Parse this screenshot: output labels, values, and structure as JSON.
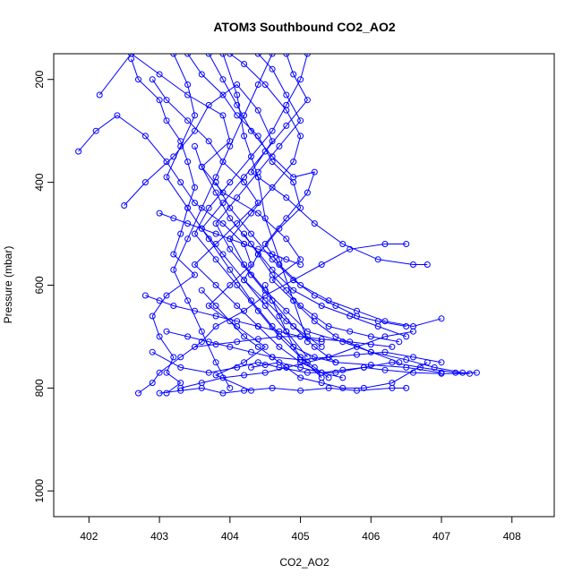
{
  "chart_data": {
    "type": "line",
    "title": "ATOM3 Southbound CO2_AO2",
    "xlabel": "CO2_AO2",
    "ylabel": "Pressure (mbar)",
    "xlim": [
      401.5,
      408.6
    ],
    "ylim": [
      1050,
      150
    ],
    "y_inverted": true,
    "x_ticks": [
      402,
      403,
      404,
      405,
      406,
      407,
      408
    ],
    "y_ticks": [
      200,
      400,
      600,
      800,
      1000
    ],
    "grid": false,
    "legend": "none",
    "line_color": "#0000ff",
    "marker": "open-circle",
    "series": [
      {
        "x": [
          402.6,
          402.7,
          403.0,
          403.1,
          403.3,
          403.4,
          403.5,
          403.4,
          403.3,
          403.2,
          403.5,
          403.1,
          402.9,
          403.0,
          403.2,
          403.1,
          403.3,
          403.1
        ],
        "y": [
          160,
          200,
          240,
          280,
          320,
          360,
          410,
          450,
          500,
          540,
          580,
          620,
          660,
          700,
          740,
          770,
          790,
          810
        ]
      },
      {
        "x": [
          401.85,
          402.1,
          402.4,
          402.8,
          403.1,
          403.3,
          403.5,
          403.9,
          404.2,
          404.3,
          404.0,
          403.7,
          404.1,
          404.5,
          404.2,
          403.8,
          404.3
        ],
        "y": [
          340,
          300,
          270,
          310,
          360,
          400,
          440,
          480,
          520,
          560,
          600,
          640,
          680,
          720,
          750,
          775,
          805
        ]
      },
      {
        "x": [
          402.15,
          402.6,
          403.0,
          403.4,
          403.9,
          404.0,
          403.6,
          403.9,
          404.4,
          404.8,
          405.0,
          404.6,
          404.9,
          405.2,
          405.5,
          406.0,
          406.5,
          406.9,
          407.3
        ],
        "y": [
          230,
          150,
          190,
          230,
          270,
          320,
          370,
          420,
          460,
          510,
          550,
          590,
          630,
          670,
          700,
          730,
          745,
          760,
          770
        ]
      },
      {
        "x": [
          402.5,
          402.8,
          403.2,
          403.5,
          403.7,
          404.1,
          404.4,
          404.6,
          404.3,
          404.8,
          405.2,
          405.6,
          406.1,
          406.6,
          406.8
        ],
        "y": [
          445,
          400,
          350,
          300,
          250,
          210,
          260,
          320,
          380,
          430,
          480,
          520,
          550,
          560,
          560
        ]
      },
      {
        "x": [
          402.7,
          402.9,
          403.0,
          403.3,
          403.6,
          403.8,
          404.2,
          404.5,
          404.9,
          405.3,
          405.7,
          406.2,
          406.5
        ],
        "y": [
          810,
          790,
          770,
          740,
          710,
          680,
          650,
          620,
          590,
          560,
          530,
          520,
          520
        ]
      },
      {
        "x": [
          402.9,
          403.3,
          403.7,
          404.1,
          404.4,
          404.7,
          405.1,
          405.5,
          405.9,
          406.3,
          406.7,
          407.2,
          407.5
        ],
        "y": [
          730,
          760,
          770,
          760,
          750,
          760,
          770,
          770,
          760,
          750,
          760,
          770,
          770
        ]
      },
      {
        "x": [
          403.0,
          403.3,
          403.6,
          403.9,
          404.2,
          404.6,
          405.0,
          405.4,
          405.8,
          406.3,
          406.5
        ],
        "y": [
          810,
          805,
          800,
          810,
          805,
          800,
          805,
          800,
          805,
          800,
          800
        ]
      },
      {
        "x": [
          403.4,
          403.6,
          403.9,
          404.1,
          404.4,
          404.6,
          404.9,
          405.0,
          404.7,
          404.4,
          404.2,
          404.5,
          404.8,
          405.1,
          405.3
        ],
        "y": [
          150,
          190,
          230,
          270,
          310,
          360,
          400,
          450,
          490,
          540,
          590,
          630,
          670,
          700,
          720
        ]
      },
      {
        "x": [
          403.7,
          403.9,
          404.1,
          404.3,
          404.6,
          404.9,
          405.2,
          405.1,
          404.8,
          404.5,
          404.7,
          405.0,
          405.4,
          405.8,
          406.2,
          406.6,
          407.0
        ],
        "y": [
          150,
          200,
          250,
          300,
          350,
          390,
          380,
          420,
          470,
          520,
          560,
          600,
          630,
          650,
          670,
          680,
          665
        ]
      },
      {
        "x": [
          404.0,
          404.2,
          404.5,
          404.8,
          405.0,
          404.9,
          404.6,
          404.3,
          404.0,
          404.2,
          404.5,
          404.8,
          405.1,
          405.6,
          406.0,
          406.4
        ],
        "y": [
          150,
          170,
          210,
          260,
          310,
          360,
          410,
          460,
          510,
          560,
          610,
          650,
          690,
          710,
          730,
          750
        ]
      },
      {
        "x": [
          404.4,
          404.6,
          404.8,
          405.0,
          404.7,
          404.4,
          404.1,
          403.8,
          404.0,
          404.3,
          404.6,
          404.9,
          405.2,
          405.5
        ],
        "y": [
          150,
          180,
          230,
          280,
          330,
          380,
          430,
          480,
          530,
          580,
          630,
          680,
          720,
          750
        ]
      },
      {
        "x": [
          404.8,
          404.9,
          405.1,
          404.8,
          404.5,
          404.2,
          403.9,
          403.6,
          403.9,
          404.2,
          404.5,
          404.8,
          405.1
        ],
        "y": [
          150,
          190,
          240,
          290,
          340,
          390,
          440,
          490,
          540,
          590,
          640,
          690,
          740
        ]
      },
      {
        "x": [
          405.1,
          405.0,
          404.8,
          404.6,
          404.3,
          404.0,
          403.7,
          403.5,
          403.8,
          404.1,
          404.4,
          404.7,
          405.0,
          405.3
        ],
        "y": [
          150,
          200,
          250,
          300,
          350,
          400,
          450,
          500,
          550,
          600,
          650,
          700,
          740,
          780
        ]
      },
      {
        "x": [
          403.2,
          403.4,
          403.5,
          403.3,
          403.1,
          403.4,
          403.7,
          404.0,
          404.3,
          404.6,
          404.9,
          405.2,
          405.5,
          406.0,
          406.5,
          407.0
        ],
        "y": [
          150,
          210,
          270,
          330,
          390,
          450,
          510,
          570,
          630,
          680,
          720,
          740,
          750,
          755,
          760,
          770
        ]
      },
      {
        "x": [
          402.9,
          403.1,
          403.4,
          403.7,
          403.9,
          404.2,
          404.4,
          404.1,
          403.8,
          403.5,
          403.8,
          404.1,
          404.4,
          404.7,
          405.0,
          405.3,
          405.6
        ],
        "y": [
          200,
          240,
          280,
          320,
          360,
          400,
          440,
          480,
          520,
          560,
          600,
          640,
          680,
          720,
          750,
          770,
          780
        ]
      },
      {
        "x": [
          403.5,
          403.6,
          403.8,
          404.0,
          404.3,
          404.6,
          404.9,
          405.3,
          405.7,
          406.1,
          406.5
        ],
        "y": [
          330,
          370,
          420,
          470,
          520,
          570,
          610,
          640,
          660,
          680,
          700
        ]
      },
      {
        "x": [
          403.6,
          403.8,
          404.0,
          404.2,
          404.4,
          404.6,
          404.8,
          405.0,
          405.3,
          405.6,
          405.9,
          406.3,
          406.8
        ],
        "y": [
          610,
          640,
          670,
          700,
          720,
          740,
          760,
          780,
          790,
          800,
          800,
          790,
          750
        ]
      },
      {
        "x": [
          403.3,
          403.6,
          403.9,
          404.2,
          404.5,
          404.8,
          405.1,
          405.4,
          405.8,
          406.2,
          406.6
        ],
        "y": [
          800,
          790,
          780,
          775,
          770,
          760,
          750,
          740,
          720,
          700,
          690
        ]
      },
      {
        "x": [
          403.8,
          404.0,
          404.3,
          404.6,
          404.9,
          405.2,
          405.5,
          405.8,
          406.1,
          406.5
        ],
        "y": [
          400,
          450,
          500,
          550,
          590,
          620,
          640,
          660,
          670,
          680
        ]
      },
      {
        "x": [
          404.2,
          404.4,
          404.6,
          404.8,
          405.0,
          405.2,
          405.4,
          405.7,
          406.0,
          406.4
        ],
        "y": [
          500,
          540,
          580,
          610,
          640,
          660,
          680,
          690,
          700,
          710
        ]
      },
      {
        "x": [
          404.5,
          404.6,
          404.7,
          404.8,
          404.9,
          405.0,
          405.2,
          405.4
        ],
        "y": [
          600,
          630,
          660,
          690,
          720,
          740,
          760,
          780
        ]
      },
      {
        "x": [
          403.1,
          403.4,
          403.7,
          404.0,
          404.3,
          404.6,
          405.0,
          405.4,
          405.8,
          406.2,
          406.6,
          407.0
        ],
        "y": [
          690,
          700,
          710,
          720,
          730,
          740,
          745,
          740,
          735,
          730,
          740,
          750
        ]
      },
      {
        "x": [
          402.8,
          403.0,
          403.2,
          403.5,
          403.8,
          404.1,
          404.4,
          404.7,
          405.0,
          405.3
        ],
        "y": [
          620,
          630,
          640,
          650,
          660,
          670,
          680,
          690,
          700,
          710
        ]
      },
      {
        "x": [
          403.9,
          404.1,
          404.2,
          404.4,
          404.5,
          404.7,
          404.9,
          405.1
        ],
        "y": [
          150,
          230,
          310,
          390,
          470,
          550,
          630,
          710
        ]
      },
      {
        "x": [
          404.6,
          404.4,
          404.2,
          404.0,
          403.8,
          403.6,
          403.4,
          403.2,
          403.4,
          403.6,
          403.8,
          404.0
        ],
        "y": [
          150,
          210,
          270,
          330,
          390,
          450,
          510,
          570,
          630,
          690,
          750,
          800
        ]
      },
      {
        "x": [
          403.0,
          403.2,
          403.4,
          403.6,
          403.8,
          404.0,
          404.2,
          404.4,
          404.6,
          404.8,
          405.0
        ],
        "y": [
          460,
          470,
          480,
          490,
          500,
          510,
          520,
          530,
          540,
          550,
          560
        ]
      },
      {
        "x": [
          404.3,
          404.5,
          404.7,
          405.0,
          405.3,
          405.6,
          405.9,
          406.2,
          406.6,
          407.0,
          407.4
        ],
        "y": [
          760,
          755,
          750,
          760,
          770,
          765,
          760,
          765,
          770,
          772,
          772
        ]
      },
      {
        "x": [
          403.5,
          403.8,
          404.1,
          404.4,
          404.7,
          405.0,
          405.3,
          405.7,
          406.0,
          406.3
        ],
        "y": [
          720,
          715,
          710,
          705,
          700,
          700,
          705,
          710,
          715,
          720
        ]
      }
    ]
  }
}
